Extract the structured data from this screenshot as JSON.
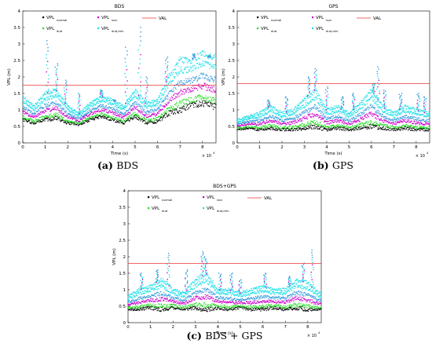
{
  "chart_data": [
    {
      "type": "scatter",
      "title": "BDS",
      "caption_tag": "(a)",
      "caption_text": "BDS",
      "xlabel": "Time (s)",
      "ylabel": "VPL (m)",
      "x_exponent": "× 10",
      "x_exponent_power": "4",
      "xlim": [
        0,
        8.6
      ],
      "ylim": [
        0,
        4
      ],
      "xticks": [
        "0",
        "1",
        "2",
        "3",
        "4",
        "5",
        "6",
        "7",
        "8"
      ],
      "yticks": [
        "0",
        "0.5",
        "1",
        "1.5",
        "2",
        "2.5",
        "3",
        "3.5",
        "4"
      ],
      "legend": [
        "VPL",
        "VPL",
        "VPL",
        "VPL",
        "VAL"
      ],
      "legend_subs": [
        "normal",
        "ivar",
        "dud",
        "dud,min"
      ],
      "val_line": 1.75,
      "colors": {
        "normal": "#000000",
        "ivar": "#cc00cc",
        "dud": "#22dd22",
        "dudmin": "#22e0e8",
        "blue": "#3399dd",
        "val": "#ee3333"
      },
      "series": [
        {
          "name": "VPL normal",
          "x": [
            0,
            0.5,
            1,
            1.5,
            2,
            2.5,
            3,
            3.5,
            4,
            4.5,
            5,
            5.5,
            6,
            6.5,
            7,
            7.5,
            8,
            8.5
          ],
          "values": [
            0.7,
            0.6,
            0.7,
            0.75,
            0.6,
            0.55,
            0.7,
            0.8,
            0.7,
            0.6,
            0.8,
            0.6,
            0.65,
            0.9,
            1.0,
            1.15,
            1.2,
            1.1
          ]
        },
        {
          "name": "VPL dud,min",
          "x": [
            0,
            0.5,
            1,
            1.5,
            2,
            2.5,
            3,
            3.5,
            4,
            4.5,
            5,
            5.5,
            6,
            6.5,
            7,
            7.5,
            8,
            8.5
          ],
          "values": [
            1.4,
            1.1,
            1.5,
            1.6,
            1.1,
            0.9,
            1.2,
            1.4,
            1.3,
            1.1,
            1.6,
            1.2,
            1.3,
            2.0,
            2.5,
            2.5,
            2.7,
            2.6
          ]
        }
      ]
    },
    {
      "type": "scatter",
      "title": "GPS",
      "caption_tag": "(b)",
      "caption_text": "GPS",
      "xlabel": "Time (s)",
      "ylabel": "VPL (m)",
      "x_exponent": "× 10",
      "x_exponent_power": "4",
      "xlim": [
        0,
        8.6
      ],
      "ylim": [
        0,
        4
      ],
      "xticks": [
        "0",
        "1",
        "2",
        "3",
        "4",
        "5",
        "6",
        "7",
        "8"
      ],
      "yticks": [
        "0",
        "0.5",
        "1",
        "1.5",
        "2",
        "2.5",
        "3",
        "3.5",
        "4"
      ],
      "legend": [
        "VPL",
        "VPL",
        "VPL",
        "VPL",
        "VAL"
      ],
      "legend_subs": [
        "normal",
        "ivar",
        "dud",
        "dud,min"
      ],
      "val_line": 1.8,
      "colors": {
        "normal": "#000000",
        "ivar": "#cc00cc",
        "dud": "#22dd22",
        "dudmin": "#22e0e8",
        "blue": "#3399dd",
        "val": "#ee3333"
      },
      "series": [
        {
          "name": "VPL normal",
          "x": [
            0,
            0.5,
            1,
            1.5,
            2,
            2.5,
            3,
            3.5,
            4,
            4.5,
            5,
            5.5,
            6,
            6.5,
            7,
            7.5,
            8,
            8.5
          ],
          "values": [
            0.4,
            0.45,
            0.4,
            0.45,
            0.4,
            0.4,
            0.45,
            0.5,
            0.4,
            0.45,
            0.4,
            0.45,
            0.5,
            0.45,
            0.4,
            0.45,
            0.4,
            0.4
          ]
        },
        {
          "name": "VPL dud,min",
          "x": [
            0,
            0.5,
            1,
            1.5,
            2,
            2.5,
            3,
            3.5,
            4,
            4.5,
            5,
            5.5,
            6,
            6.5,
            7,
            7.5,
            8,
            8.5
          ],
          "values": [
            0.7,
            0.8,
            0.9,
            1.1,
            0.9,
            1.0,
            1.3,
            1.6,
            1.0,
            1.1,
            0.9,
            1.2,
            1.6,
            1.1,
            0.9,
            1.1,
            1.0,
            0.9
          ]
        }
      ]
    },
    {
      "type": "scatter",
      "title": "BDS+GPS",
      "caption_tag": "(c)",
      "caption_text": "BDS + GPS",
      "xlabel": "Time (s)",
      "ylabel": "VPL (m)",
      "x_exponent": "× 10",
      "x_exponent_power": "4",
      "xlim": [
        0,
        8.6
      ],
      "ylim": [
        0,
        4
      ],
      "xticks": [
        "0",
        "1",
        "2",
        "3",
        "4",
        "5",
        "6",
        "7",
        "8"
      ],
      "yticks": [
        "0",
        "0.5",
        "1",
        "1.5",
        "2",
        "2.5",
        "3",
        "3.5",
        "4"
      ],
      "legend": [
        "VPL",
        "VPL",
        "VPL",
        "VPL",
        "VAL"
      ],
      "legend_subs": [
        "normal",
        "ivar",
        "dud",
        "dud,min"
      ],
      "val_line": 1.8,
      "colors": {
        "normal": "#000000",
        "ivar": "#cc00cc",
        "dud": "#22dd22",
        "dudmin": "#22e0e8",
        "blue": "#3399dd",
        "val": "#ee3333"
      },
      "series": [
        {
          "name": "VPL normal",
          "x": [
            0,
            0.5,
            1,
            1.5,
            2,
            2.5,
            3,
            3.5,
            4,
            4.5,
            5,
            5.5,
            6,
            6.5,
            7,
            7.5,
            8,
            8.5
          ],
          "values": [
            0.4,
            0.4,
            0.45,
            0.4,
            0.45,
            0.4,
            0.45,
            0.4,
            0.45,
            0.4,
            0.45,
            0.4,
            0.4,
            0.45,
            0.4,
            0.45,
            0.4,
            0.4
          ]
        },
        {
          "name": "VPL dud,min",
          "x": [
            0,
            0.5,
            1,
            1.5,
            2,
            2.5,
            3,
            3.5,
            4,
            4.5,
            5,
            5.5,
            6,
            6.5,
            7,
            7.5,
            8,
            8.5
          ],
          "values": [
            0.8,
            1.0,
            1.1,
            1.3,
            1.0,
            0.9,
            1.3,
            1.5,
            1.0,
            1.0,
            0.9,
            1.0,
            1.1,
            1.0,
            1.0,
            1.3,
            1.2,
            0.9
          ]
        }
      ]
    }
  ]
}
